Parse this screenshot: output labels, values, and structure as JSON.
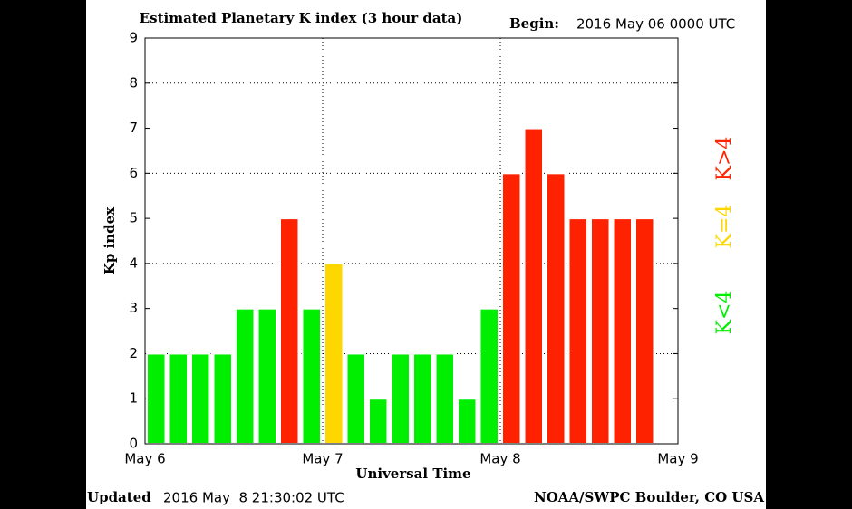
{
  "chart_data": {
    "type": "bar",
    "title": "Estimated Planetary K index (3 hour data)",
    "begin_label": "Begin:",
    "begin_value": "2016 May 06 0000 UTC",
    "y_label": "Kp index",
    "x_label": "Universal Time",
    "updated_label": "Updated",
    "updated_value": "2016 May  8 21:30:02 UTC",
    "credit": "NOAA/SWPC Boulder, CO USA",
    "x": [
      6,
      6.125,
      6.25,
      6.375,
      6.5,
      6.625,
      6.75,
      6.875,
      7,
      7.125,
      7.25,
      7.375,
      7.5,
      7.625,
      7.75,
      7.875,
      8,
      8.125,
      8.25,
      8.375,
      8.5,
      8.625,
      8.75
    ],
    "values": [
      2,
      2,
      2,
      2,
      3,
      3,
      5,
      3,
      4,
      2,
      1,
      2,
      2,
      2,
      1,
      3,
      6,
      7,
      6,
      5,
      5,
      5,
      5
    ],
    "colors": [
      "#00ee00",
      "#00ee00",
      "#00ee00",
      "#00ee00",
      "#00ee00",
      "#00ee00",
      "#ff2200",
      "#00ee00",
      "#ffd700",
      "#00ee00",
      "#00ee00",
      "#00ee00",
      "#00ee00",
      "#00ee00",
      "#00ee00",
      "#00ee00",
      "#ff2200",
      "#ff2200",
      "#ff2200",
      "#ff2200",
      "#ff2200",
      "#ff2200",
      "#ff2200"
    ],
    "xlim": [
      6,
      9
    ],
    "xticks": [
      {
        "value": 6,
        "label": "May 6"
      },
      {
        "value": 7,
        "label": "May 7"
      },
      {
        "value": 8,
        "label": "May 8"
      },
      {
        "value": 9,
        "label": "May 9"
      }
    ],
    "ylim": [
      0,
      9
    ],
    "yticks": [
      0,
      1,
      2,
      3,
      4,
      5,
      6,
      7,
      8,
      9
    ],
    "ygrid": [
      2,
      4,
      6,
      8
    ],
    "legend": [
      {
        "label": "K<4",
        "color": "#00ee00"
      },
      {
        "label": "K=4",
        "color": "#ffd700"
      },
      {
        "label": "K>4",
        "color": "#ff2200"
      }
    ]
  }
}
